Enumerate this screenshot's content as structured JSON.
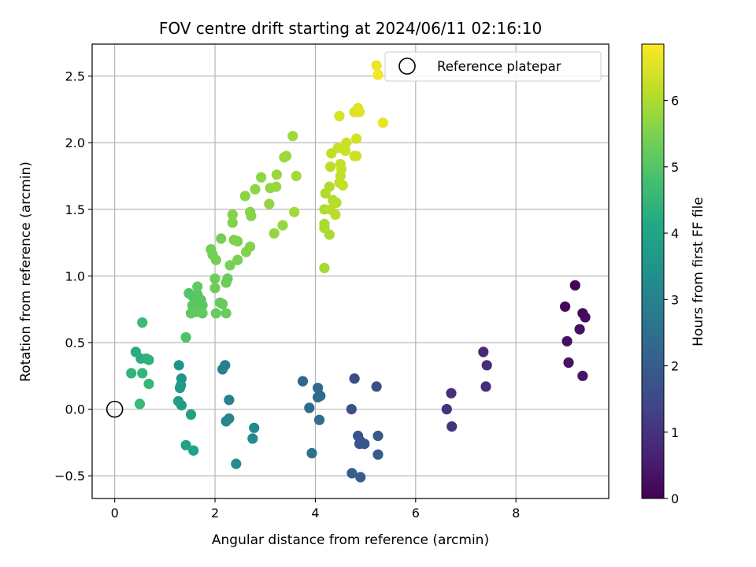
{
  "chart_data": {
    "type": "scatter",
    "title": "FOV centre drift starting at 2024/06/11 02:16:10",
    "xlabel": "Angular distance from reference (arcmin)",
    "ylabel": "Rotation from reference (arcmin)",
    "xlim": [
      -0.45,
      9.85
    ],
    "ylim": [
      -0.67,
      2.74
    ],
    "xticks": [
      0,
      2,
      4,
      6,
      8
    ],
    "yticks": [
      -0.5,
      0.0,
      0.5,
      1.0,
      1.5,
      2.0,
      2.5
    ],
    "xtick_labels": [
      "0",
      "2",
      "4",
      "6",
      "8"
    ],
    "ytick_labels": [
      "−0.5",
      "0.0",
      "0.5",
      "1.0",
      "1.5",
      "2.0",
      "2.5"
    ],
    "grid": true,
    "colorbar": {
      "label": "Hours from first FF file",
      "range": [
        0,
        6.85
      ],
      "ticks": [
        0,
        1,
        2,
        3,
        4,
        5,
        6
      ],
      "tick_labels": [
        "0",
        "1",
        "2",
        "3",
        "4",
        "5",
        "6"
      ],
      "colormap": "viridis"
    },
    "legend": {
      "placement": "top-right",
      "entries": [
        "Reference platepar"
      ]
    },
    "reference_point": {
      "x": 0,
      "y": 0
    },
    "series": [
      {
        "points": [
          [
            9.18,
            0.93,
            0.05
          ],
          [
            8.98,
            0.77,
            0.1
          ],
          [
            9.33,
            0.72,
            0.15
          ],
          [
            9.38,
            0.69,
            0.2
          ],
          [
            9.27,
            0.6,
            0.25
          ],
          [
            9.02,
            0.51,
            0.3
          ],
          [
            9.05,
            0.35,
            0.35
          ],
          [
            9.33,
            0.25,
            0.4
          ],
          [
            7.35,
            0.43,
            0.8
          ],
          [
            7.42,
            0.33,
            0.85
          ],
          [
            7.4,
            0.17,
            0.9
          ],
          [
            6.71,
            0.12,
            0.95
          ],
          [
            6.62,
            0.0,
            1.0
          ],
          [
            6.72,
            -0.13,
            1.05
          ],
          [
            4.78,
            0.23,
            1.55
          ],
          [
            5.22,
            0.17,
            1.6
          ],
          [
            4.72,
            0.0,
            1.65
          ],
          [
            4.85,
            -0.2,
            1.7
          ],
          [
            4.88,
            -0.26,
            1.75
          ],
          [
            4.9,
            -0.24,
            1.8
          ],
          [
            4.98,
            -0.26,
            1.85
          ],
          [
            5.25,
            -0.2,
            1.9
          ],
          [
            5.25,
            -0.34,
            1.95
          ],
          [
            4.9,
            -0.51,
            2.0
          ],
          [
            4.73,
            -0.48,
            2.05
          ],
          [
            3.75,
            0.21,
            2.25
          ],
          [
            4.05,
            0.16,
            2.3
          ],
          [
            4.05,
            0.09,
            2.35
          ],
          [
            4.1,
            0.1,
            2.4
          ],
          [
            3.88,
            0.01,
            2.45
          ],
          [
            4.08,
            -0.08,
            2.5
          ],
          [
            3.93,
            -0.33,
            2.55
          ],
          [
            2.2,
            0.33,
            2.95
          ],
          [
            2.15,
            0.3,
            3.0
          ],
          [
            2.28,
            0.07,
            3.05
          ],
          [
            2.28,
            -0.07,
            3.1
          ],
          [
            2.22,
            -0.09,
            3.15
          ],
          [
            2.78,
            -0.14,
            3.2
          ],
          [
            2.75,
            -0.22,
            3.25
          ],
          [
            2.42,
            -0.41,
            3.3
          ],
          [
            1.28,
            0.33,
            3.55
          ],
          [
            1.33,
            0.23,
            3.6
          ],
          [
            1.32,
            0.18,
            3.65
          ],
          [
            1.3,
            0.16,
            3.7
          ],
          [
            1.27,
            0.06,
            3.75
          ],
          [
            1.33,
            0.03,
            3.8
          ],
          [
            1.52,
            -0.04,
            3.85
          ],
          [
            1.42,
            -0.27,
            3.9
          ],
          [
            1.57,
            -0.31,
            3.95
          ],
          [
            0.42,
            0.43,
            4.25
          ],
          [
            0.52,
            0.38,
            4.3
          ],
          [
            0.63,
            0.38,
            4.35
          ],
          [
            0.68,
            0.37,
            4.4
          ],
          [
            0.33,
            0.27,
            4.45
          ],
          [
            0.55,
            0.27,
            4.5
          ],
          [
            0.68,
            0.19,
            4.55
          ],
          [
            0.5,
            0.04,
            4.6
          ],
          [
            0.55,
            0.65,
            4.65
          ],
          [
            1.42,
            0.54,
            4.9
          ],
          [
            1.48,
            0.87,
            4.95
          ],
          [
            1.55,
            0.85,
            5.0
          ],
          [
            1.62,
            0.8,
            5.02
          ],
          [
            1.65,
            0.86,
            5.04
          ],
          [
            1.72,
            0.82,
            5.06
          ],
          [
            1.75,
            0.78,
            5.08
          ],
          [
            1.55,
            0.78,
            5.1
          ],
          [
            1.52,
            0.72,
            5.12
          ],
          [
            1.62,
            0.73,
            5.14
          ],
          [
            1.75,
            0.72,
            5.16
          ],
          [
            1.65,
            0.92,
            5.18
          ],
          [
            2.1,
            0.8,
            5.2
          ],
          [
            2.02,
            0.72,
            5.22
          ],
          [
            2.15,
            0.79,
            5.24
          ],
          [
            2.22,
            0.72,
            5.26
          ],
          [
            2.25,
            0.98,
            5.28
          ],
          [
            2.22,
            0.95,
            5.3
          ],
          [
            2.0,
            0.98,
            5.32
          ],
          [
            2.0,
            0.91,
            5.34
          ],
          [
            1.92,
            1.2,
            5.36
          ],
          [
            1.95,
            1.16,
            5.38
          ],
          [
            2.02,
            1.12,
            5.4
          ],
          [
            2.12,
            1.28,
            5.42
          ],
          [
            2.3,
            1.08,
            5.44
          ],
          [
            2.45,
            1.12,
            5.46
          ],
          [
            2.38,
            1.27,
            5.48
          ],
          [
            2.45,
            1.26,
            5.5
          ],
          [
            2.62,
            1.18,
            5.52
          ],
          [
            2.7,
            1.22,
            5.54
          ],
          [
            2.35,
            1.4,
            5.56
          ],
          [
            2.35,
            1.46,
            5.58
          ],
          [
            2.7,
            1.48,
            5.6
          ],
          [
            2.72,
            1.45,
            5.62
          ],
          [
            2.6,
            1.6,
            5.64
          ],
          [
            2.8,
            1.65,
            5.66
          ],
          [
            2.92,
            1.74,
            5.68
          ],
          [
            3.1,
            1.66,
            5.7
          ],
          [
            3.08,
            1.54,
            5.72
          ],
          [
            3.18,
            1.32,
            5.74
          ],
          [
            3.35,
            1.38,
            5.76
          ],
          [
            3.22,
            1.67,
            5.78
          ],
          [
            3.23,
            1.76,
            5.8
          ],
          [
            3.38,
            1.89,
            5.82
          ],
          [
            3.42,
            1.9,
            5.84
          ],
          [
            3.55,
            2.05,
            5.86
          ],
          [
            3.58,
            1.48,
            5.88
          ],
          [
            3.62,
            1.75,
            5.9
          ],
          [
            4.18,
            1.06,
            5.92
          ],
          [
            4.18,
            1.39,
            5.94
          ],
          [
            4.18,
            1.36,
            5.96
          ],
          [
            4.28,
            1.31,
            5.98
          ],
          [
            4.18,
            1.5,
            6.0
          ],
          [
            4.2,
            1.62,
            6.02
          ],
          [
            4.28,
            1.67,
            6.04
          ],
          [
            4.35,
            1.57,
            6.06
          ],
          [
            4.42,
            1.55,
            6.08
          ],
          [
            4.4,
            1.46,
            6.1
          ],
          [
            4.3,
            1.5,
            6.12
          ],
          [
            4.3,
            1.82,
            6.14
          ],
          [
            4.32,
            1.92,
            6.16
          ],
          [
            4.48,
            1.7,
            6.18
          ],
          [
            4.5,
            1.75,
            6.2
          ],
          [
            4.52,
            1.8,
            6.22
          ],
          [
            4.5,
            1.84,
            6.24
          ],
          [
            4.55,
            1.68,
            6.26
          ],
          [
            4.45,
            1.96,
            6.28
          ],
          [
            4.6,
            1.94,
            6.3
          ],
          [
            4.62,
            2.0,
            6.32
          ],
          [
            4.78,
            1.9,
            6.34
          ],
          [
            4.82,
            1.9,
            6.36
          ],
          [
            4.82,
            2.03,
            6.38
          ],
          [
            4.48,
            2.2,
            6.42
          ],
          [
            4.78,
            2.23,
            6.46
          ],
          [
            4.85,
            2.26,
            6.5
          ],
          [
            4.88,
            2.23,
            6.55
          ],
          [
            5.35,
            2.15,
            6.62
          ],
          [
            5.22,
            2.58,
            6.68
          ],
          [
            5.25,
            2.51,
            6.75
          ]
        ]
      }
    ]
  }
}
